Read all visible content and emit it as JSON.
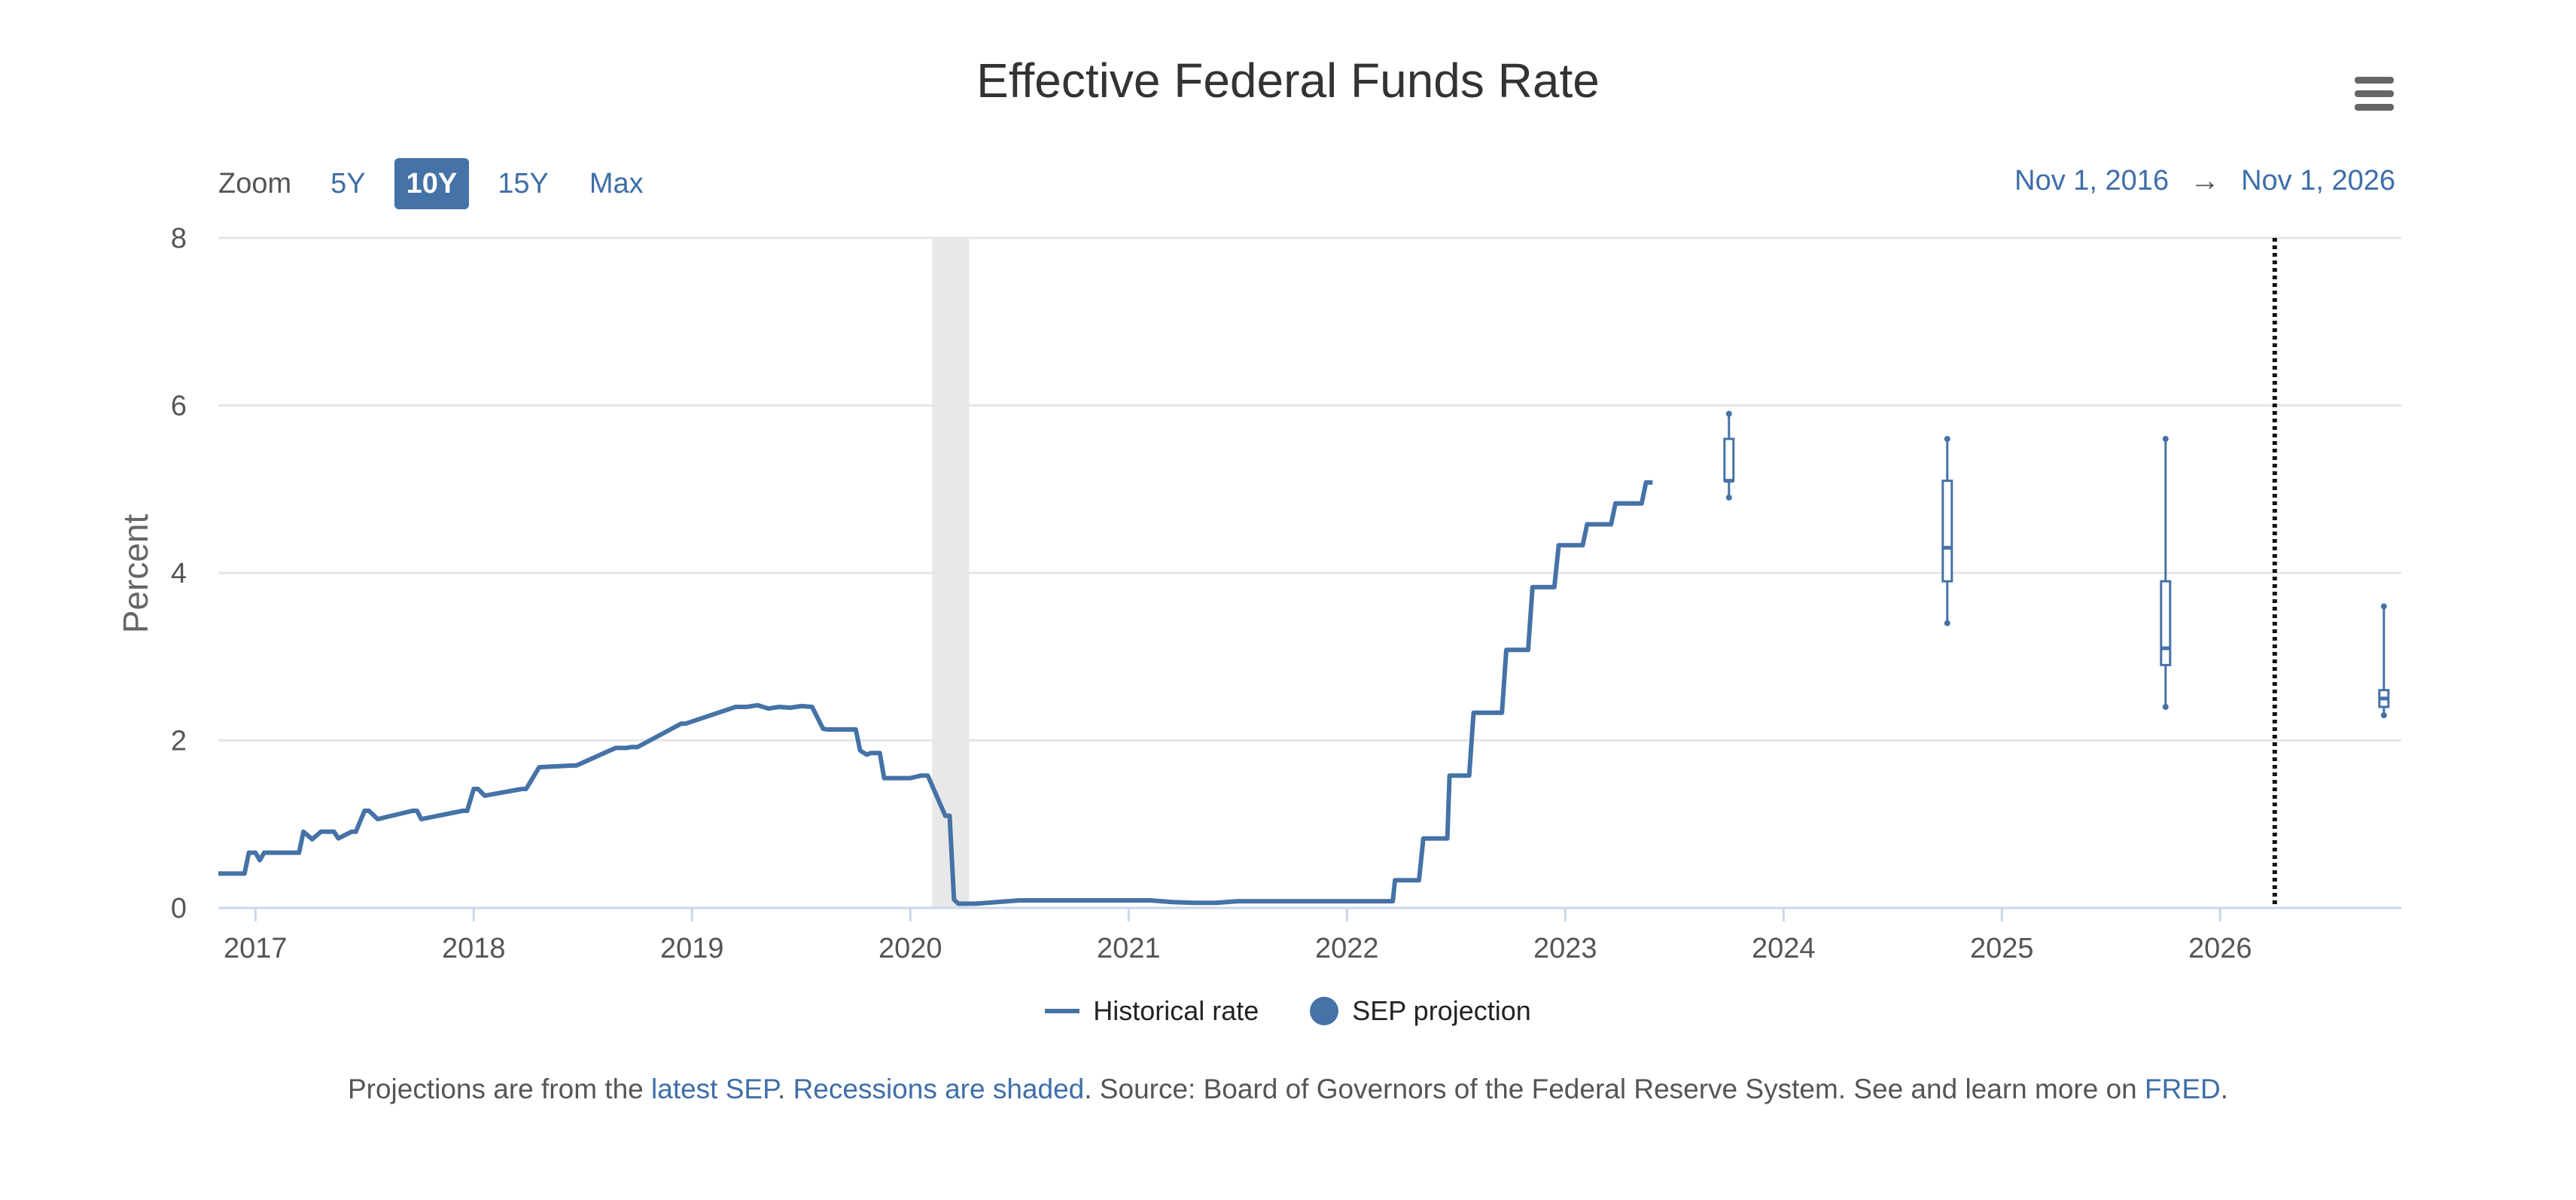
{
  "chart_data": {
    "type": "line",
    "title": "Effective Federal Funds Rate",
    "ylabel": "Percent",
    "xlabel": "",
    "xlim": [
      2016.83,
      2026.83
    ],
    "ylim": [
      0,
      8
    ],
    "y_ticks": [
      0,
      2,
      4,
      6,
      8
    ],
    "x_ticks": [
      2017,
      2018,
      2019,
      2020,
      2021,
      2022,
      2023,
      2024,
      2025,
      2026
    ],
    "x_tick_labels": [
      "2017",
      "2018",
      "2019",
      "2020",
      "2021",
      "2022",
      "2023",
      "2024",
      "2025",
      "2026"
    ],
    "grid": true,
    "recession": [
      [
        2020.1,
        2020.27
      ]
    ],
    "marker_line_x": 2026.25,
    "series": [
      {
        "name": "Historical rate",
        "x": [
          2016.83,
          2016.95,
          2016.97,
          2017.0,
          2017.02,
          2017.04,
          2017.2,
          2017.22,
          2017.26,
          2017.3,
          2017.36,
          2017.38,
          2017.44,
          2017.46,
          2017.5,
          2017.52,
          2017.56,
          2017.72,
          2017.74,
          2017.76,
          2017.95,
          2017.97,
          2018.0,
          2018.02,
          2018.05,
          2018.22,
          2018.24,
          2018.3,
          2018.45,
          2018.47,
          2018.65,
          2018.7,
          2018.72,
          2018.75,
          2018.95,
          2018.97,
          2019.2,
          2019.25,
          2019.3,
          2019.35,
          2019.4,
          2019.45,
          2019.5,
          2019.55,
          2019.6,
          2019.62,
          2019.75,
          2019.77,
          2019.8,
          2019.82,
          2019.86,
          2019.88,
          2020.0,
          2020.05,
          2020.08,
          2020.16,
          2020.18,
          2020.2,
          2020.22,
          2020.25,
          2020.3,
          2020.5,
          2020.6,
          2020.7,
          2020.8,
          2020.9,
          2021.0,
          2021.1,
          2021.2,
          2021.3,
          2021.4,
          2021.5,
          2021.6,
          2021.7,
          2021.8,
          2021.9,
          2022.0,
          2022.1,
          2022.21,
          2022.22,
          2022.33,
          2022.35,
          2022.46,
          2022.47,
          2022.56,
          2022.58,
          2022.71,
          2022.73,
          2022.83,
          2022.85,
          2022.95,
          2022.97,
          2023.08,
          2023.1,
          2023.21,
          2023.23,
          2023.35,
          2023.37,
          2023.4
        ],
        "values": [
          0.41,
          0.41,
          0.66,
          0.66,
          0.57,
          0.66,
          0.66,
          0.91,
          0.82,
          0.91,
          0.91,
          0.83,
          0.91,
          0.91,
          1.16,
          1.16,
          1.06,
          1.16,
          1.16,
          1.06,
          1.16,
          1.16,
          1.42,
          1.42,
          1.34,
          1.42,
          1.42,
          1.68,
          1.7,
          1.7,
          1.91,
          1.91,
          1.92,
          1.92,
          2.2,
          2.2,
          2.4,
          2.4,
          2.42,
          2.38,
          2.4,
          2.39,
          2.41,
          2.4,
          2.14,
          2.13,
          2.13,
          1.88,
          1.83,
          1.85,
          1.85,
          1.55,
          1.55,
          1.58,
          1.58,
          1.1,
          1.1,
          0.1,
          0.05,
          0.05,
          0.05,
          0.09,
          0.09,
          0.09,
          0.09,
          0.09,
          0.09,
          0.09,
          0.07,
          0.06,
          0.06,
          0.08,
          0.08,
          0.08,
          0.08,
          0.08,
          0.08,
          0.08,
          0.08,
          0.33,
          0.33,
          0.83,
          0.83,
          1.58,
          1.58,
          2.33,
          2.33,
          3.08,
          3.08,
          3.83,
          3.83,
          4.33,
          4.33,
          4.58,
          4.58,
          4.83,
          4.83,
          5.08,
          5.08
        ]
      },
      {
        "name": "SEP projection",
        "type": "boxplot",
        "x": [
          2023.75,
          2024.75,
          2025.75,
          2026.75
        ],
        "low": [
          4.9,
          3.4,
          2.4,
          2.3
        ],
        "q1": [
          5.1,
          3.9,
          2.9,
          2.4
        ],
        "median": [
          5.1,
          4.3,
          3.1,
          2.5
        ],
        "q3": [
          5.6,
          5.1,
          3.9,
          2.6
        ],
        "high": [
          5.9,
          5.6,
          5.6,
          3.6
        ]
      }
    ]
  },
  "zoom": {
    "label": "Zoom",
    "options": [
      "5Y",
      "10Y",
      "15Y",
      "Max"
    ],
    "active": "10Y"
  },
  "range": {
    "start": "Nov 1, 2016",
    "arrow": "→",
    "end": "Nov 1, 2026"
  },
  "legend": {
    "historical": "Historical rate",
    "sep": "SEP projection"
  },
  "footer": {
    "prefix": "Projections are from the ",
    "link_sep": "latest SEP",
    "sep1": ". ",
    "link_recessions": "Recessions are shaded",
    "middle": ". Source: Board of Governors of the Federal Reserve System. See and learn more on ",
    "link_fred": "FRED",
    "suffix": "."
  },
  "colors": {
    "series": "#4572a7",
    "grid": "#e6e6e6",
    "recession": "#e8e8e8",
    "link": "#3e6ea8"
  }
}
